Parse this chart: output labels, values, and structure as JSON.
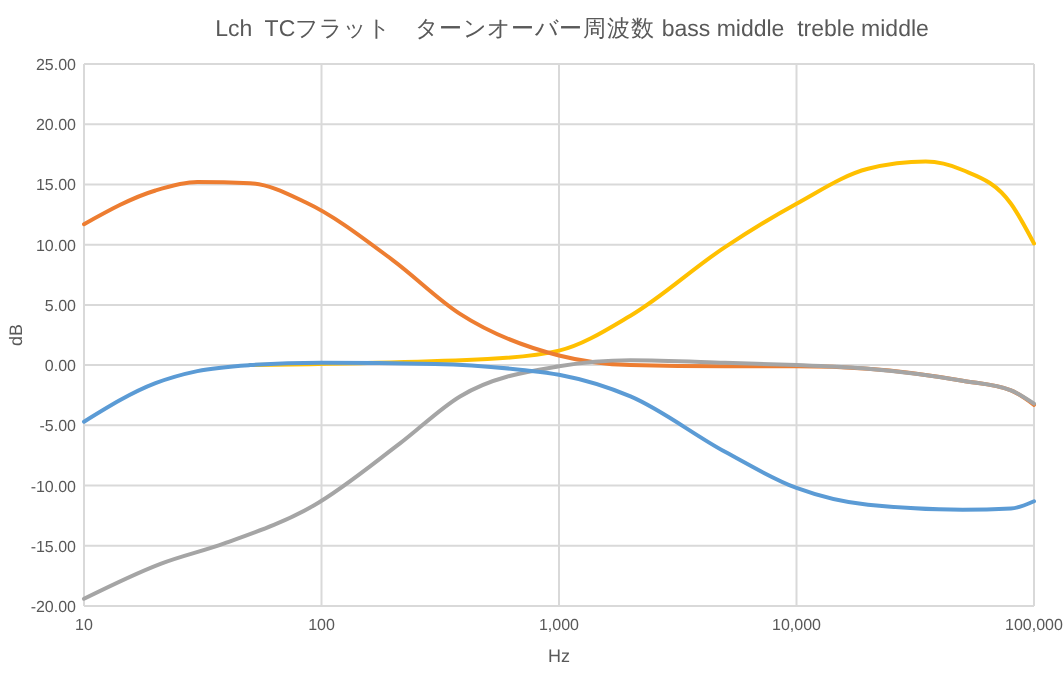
{
  "chart_data": {
    "type": "line",
    "title": "Lch  TCフラット　ターンオーバー周波数 bass middle  treble middle",
    "xlabel": "Hz",
    "ylabel": "dB",
    "log": "x",
    "grid": true,
    "marker": "none",
    "line_style": "solid",
    "xlim": [
      10,
      100000
    ],
    "xticks": [
      10,
      100,
      {
        "value": 1000,
        "label": "1,000"
      },
      {
        "value": 10000,
        "label": "10,000"
      },
      {
        "value": 100000,
        "label": "100,000"
      }
    ],
    "ylim": [
      -20,
      25
    ],
    "yticks": [
      {
        "value": -20,
        "label": "-20.00"
      },
      {
        "value": -15,
        "label": "-15.00"
      },
      {
        "value": -10,
        "label": "-10.00"
      },
      {
        "value": -5,
        "label": "-5.00"
      },
      {
        "value": 0,
        "label": "0.00"
      },
      {
        "value": 5,
        "label": "5.00"
      },
      {
        "value": 10,
        "label": "10.00"
      },
      {
        "value": 15,
        "label": "15.00"
      },
      {
        "value": 20,
        "label": "20.00"
      },
      {
        "value": 25,
        "label": "25.00"
      }
    ],
    "series": [
      {
        "color": "#ffc000",
        "x": [
          50,
          500,
          1000,
          2000,
          5000,
          10000,
          20000,
          35000,
          50000,
          80000,
          100000
        ],
        "values": [
          0,
          0.5,
          1.2,
          4.1,
          9.8,
          13.4,
          16.3,
          16.9,
          16.2,
          13.4,
          10.1
        ]
      },
      {
        "color": "#ed7d31",
        "x": [
          10,
          20,
          30,
          50,
          86,
          200,
          380,
          1000,
          2000,
          5000,
          10000,
          20000,
          50000,
          80000,
          100000
        ],
        "values": [
          11.7,
          14.5,
          15.2,
          15.1,
          13.5,
          8.7,
          4.3,
          0.8,
          0,
          -0.1,
          -0.1,
          -0.3,
          -1.3,
          -2.1,
          -3.3
        ]
      },
      {
        "color": "#a5a5a5",
        "x": [
          10,
          21,
          39,
          92,
          214,
          383,
          1000,
          2000,
          5000,
          10000,
          20000,
          50000,
          80000,
          100000
        ],
        "values": [
          -19.4,
          -16.5,
          -14.8,
          -11.7,
          -6.5,
          -2.6,
          -0.1,
          0.4,
          0.2,
          0,
          -0.3,
          -1.3,
          -2.1,
          -3.2
        ]
      },
      {
        "color": "#5b9bd5",
        "x": [
          10,
          20,
          30,
          50,
          100,
          300,
          700,
          1000,
          2000,
          5000,
          10000,
          20000,
          50000,
          80000,
          100000
        ],
        "values": [
          -4.7,
          -1.5,
          -0.5,
          0,
          0.2,
          0.1,
          -0.4,
          -0.8,
          -2.6,
          -7.2,
          -10.2,
          -11.6,
          -12,
          -11.9,
          -11.3
        ]
      }
    ]
  }
}
